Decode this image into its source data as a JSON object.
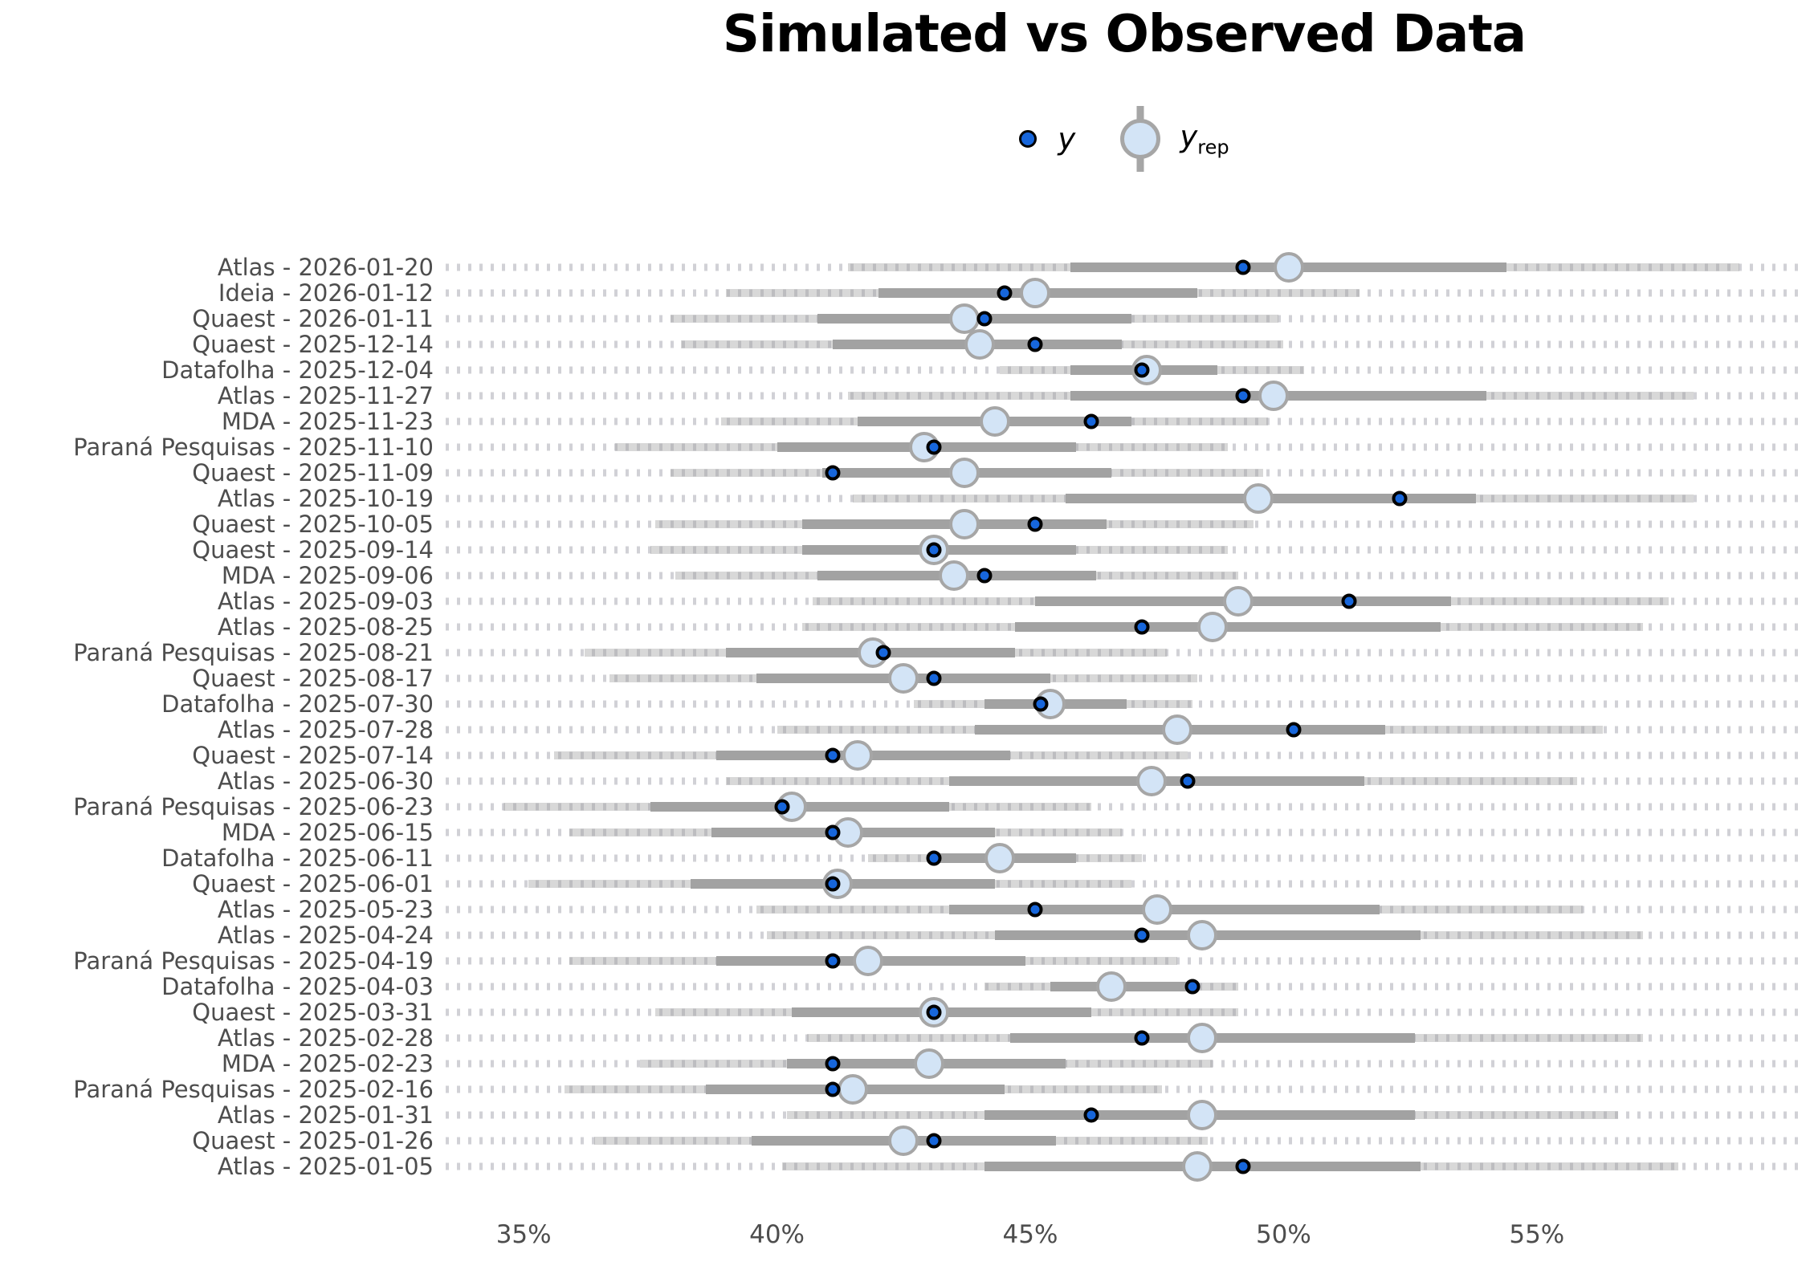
{
  "title": "Simulated vs Observed Data",
  "legend": {
    "y_label": "y",
    "yrep_base": "y",
    "yrep_sub": "rep"
  },
  "colors": {
    "observed_fill": "#1766db",
    "observed_stroke": "#000000",
    "rep_fill": "#d3e4f6",
    "rep_stroke": "#a6a6a6",
    "inner_bar": "#a2a2a2",
    "outer_band": "rgba(163,163,163,0.42)",
    "grid_dot": "#d1d1d6",
    "axis_text": "#4d4d4d"
  },
  "chart_data": {
    "type": "scatter",
    "subtype": "ppc-intervals (posterior predictive check: point + interval per observation)",
    "title": "Simulated vs Observed Data",
    "xlabel": "",
    "ylabel": "",
    "x_ticks_labels": [
      "35%",
      "40%",
      "45%",
      "50%",
      "55%"
    ],
    "x_tick_values": [
      35,
      40,
      45,
      50,
      55
    ],
    "x_domain": [
      33.46,
      60.25
    ],
    "legend_entries": [
      "y",
      "y_rep"
    ],
    "legend_position": "top-center",
    "grid": "dotted horizontal guide per row",
    "rows": [
      {
        "label": "Atlas - 2026-01-20",
        "y": 49.2,
        "yrep_median": 50.1,
        "inner": [
          45.8,
          54.4
        ],
        "outer": [
          41.4,
          59.0
        ]
      },
      {
        "label": "Ideia - 2026-01-12",
        "y": 44.5,
        "yrep_median": 45.1,
        "inner": [
          42.0,
          48.3
        ],
        "outer": [
          39.0,
          51.5
        ]
      },
      {
        "label": "Quaest - 2026-01-11",
        "y": 44.1,
        "yrep_median": 43.7,
        "inner": [
          40.8,
          47.0
        ],
        "outer": [
          37.9,
          49.9
        ]
      },
      {
        "label": "Quaest - 2025-12-14",
        "y": 45.1,
        "yrep_median": 44.0,
        "inner": [
          41.1,
          46.8
        ],
        "outer": [
          38.1,
          50.0
        ]
      },
      {
        "label": "Datafolha - 2025-12-04",
        "y": 47.2,
        "yrep_median": 47.3,
        "inner": [
          45.8,
          48.7
        ],
        "outer": [
          44.4,
          50.4
        ]
      },
      {
        "label": "Atlas - 2025-11-27",
        "y": 49.2,
        "yrep_median": 49.8,
        "inner": [
          45.8,
          54.0
        ],
        "outer": [
          41.4,
          58.1
        ]
      },
      {
        "label": "MDA - 2025-11-23",
        "y": 46.2,
        "yrep_median": 44.3,
        "inner": [
          41.6,
          47.0
        ],
        "outer": [
          38.9,
          49.7
        ]
      },
      {
        "label": "Paraná Pesquisas - 2025-11-10",
        "y": 43.1,
        "yrep_median": 42.9,
        "inner": [
          40.0,
          45.9
        ],
        "outer": [
          36.8,
          48.9
        ]
      },
      {
        "label": "Quaest - 2025-11-09",
        "y": 41.1,
        "yrep_median": 43.7,
        "inner": [
          40.9,
          46.6
        ],
        "outer": [
          37.9,
          49.6
        ]
      },
      {
        "label": "Atlas - 2025-10-19",
        "y": 52.3,
        "yrep_median": 49.5,
        "inner": [
          45.7,
          53.8
        ],
        "outer": [
          41.5,
          58.1
        ]
      },
      {
        "label": "Quaest - 2025-10-05",
        "y": 45.1,
        "yrep_median": 43.7,
        "inner": [
          40.5,
          46.5
        ],
        "outer": [
          37.6,
          49.4
        ]
      },
      {
        "label": "Quaest - 2025-09-14",
        "y": 43.1,
        "yrep_median": 43.1,
        "inner": [
          40.5,
          45.9
        ],
        "outer": [
          37.5,
          48.9
        ]
      },
      {
        "label": "MDA - 2025-09-06",
        "y": 44.1,
        "yrep_median": 43.5,
        "inner": [
          40.8,
          46.3
        ],
        "outer": [
          38.0,
          49.1
        ]
      },
      {
        "label": "Atlas - 2025-09-03",
        "y": 51.3,
        "yrep_median": 49.1,
        "inner": [
          45.1,
          53.3
        ],
        "outer": [
          40.7,
          57.6
        ]
      },
      {
        "label": "Atlas - 2025-08-25",
        "y": 47.2,
        "yrep_median": 48.6,
        "inner": [
          44.7,
          53.1
        ],
        "outer": [
          40.5,
          57.1
        ]
      },
      {
        "label": "Paraná Pesquisas - 2025-08-21",
        "y": 42.1,
        "yrep_median": 41.9,
        "inner": [
          39.0,
          44.7
        ],
        "outer": [
          36.2,
          47.7
        ]
      },
      {
        "label": "Quaest - 2025-08-17",
        "y": 43.1,
        "yrep_median": 42.5,
        "inner": [
          39.6,
          45.4
        ],
        "outer": [
          36.7,
          48.3
        ]
      },
      {
        "label": "Datafolha - 2025-07-30",
        "y": 45.2,
        "yrep_median": 45.4,
        "inner": [
          44.1,
          46.9
        ],
        "outer": [
          42.7,
          48.2
        ]
      },
      {
        "label": "Atlas - 2025-07-28",
        "y": 50.2,
        "yrep_median": 47.9,
        "inner": [
          43.9,
          52.0
        ],
        "outer": [
          40.0,
          56.3
        ]
      },
      {
        "label": "Quaest - 2025-07-14",
        "y": 41.1,
        "yrep_median": 41.6,
        "inner": [
          38.8,
          44.6
        ],
        "outer": [
          35.6,
          48.1
        ]
      },
      {
        "label": "Atlas - 2025-06-30",
        "y": 48.1,
        "yrep_median": 47.4,
        "inner": [
          43.4,
          51.6
        ],
        "outer": [
          39.0,
          55.8
        ]
      },
      {
        "label": "Paraná Pesquisas - 2025-06-23",
        "y": 40.1,
        "yrep_median": 40.3,
        "inner": [
          37.5,
          43.4
        ],
        "outer": [
          34.6,
          46.2
        ]
      },
      {
        "label": "MDA - 2025-06-15",
        "y": 41.1,
        "yrep_median": 41.4,
        "inner": [
          38.7,
          44.3
        ],
        "outer": [
          35.9,
          46.8
        ]
      },
      {
        "label": "Datafolha - 2025-06-11",
        "y": 43.1,
        "yrep_median": 44.4,
        "inner": [
          43.1,
          45.9
        ],
        "outer": [
          41.8,
          47.2
        ]
      },
      {
        "label": "Quaest - 2025-06-01",
        "y": 41.1,
        "yrep_median": 41.2,
        "inner": [
          38.3,
          44.3
        ],
        "outer": [
          35.1,
          47.0
        ]
      },
      {
        "label": "Atlas - 2025-05-23",
        "y": 45.1,
        "yrep_median": 47.5,
        "inner": [
          43.4,
          51.9
        ],
        "outer": [
          39.6,
          55.9
        ]
      },
      {
        "label": "Atlas - 2025-04-24",
        "y": 47.2,
        "yrep_median": 48.4,
        "inner": [
          44.3,
          52.7
        ],
        "outer": [
          39.8,
          57.1
        ]
      },
      {
        "label": "Paraná Pesquisas - 2025-04-19",
        "y": 41.1,
        "yrep_median": 41.8,
        "inner": [
          38.8,
          44.9
        ],
        "outer": [
          35.9,
          47.9
        ]
      },
      {
        "label": "Datafolha - 2025-04-03",
        "y": 48.2,
        "yrep_median": 46.6,
        "inner": [
          45.4,
          48.1
        ],
        "outer": [
          44.1,
          49.1
        ]
      },
      {
        "label": "Quaest - 2025-03-31",
        "y": 43.1,
        "yrep_median": 43.1,
        "inner": [
          40.3,
          46.2
        ],
        "outer": [
          37.6,
          49.1
        ]
      },
      {
        "label": "Atlas - 2025-02-28",
        "y": 47.2,
        "yrep_median": 48.4,
        "inner": [
          44.6,
          52.6
        ],
        "outer": [
          40.6,
          57.1
        ]
      },
      {
        "label": "MDA - 2025-02-23",
        "y": 41.1,
        "yrep_median": 43.0,
        "inner": [
          40.2,
          45.7
        ],
        "outer": [
          37.3,
          48.6
        ]
      },
      {
        "label": "Paraná Pesquisas - 2025-02-16",
        "y": 41.1,
        "yrep_median": 41.5,
        "inner": [
          38.6,
          44.5
        ],
        "outer": [
          35.8,
          47.6
        ]
      },
      {
        "label": "Atlas - 2025-01-31",
        "y": 46.2,
        "yrep_median": 48.4,
        "inner": [
          44.1,
          52.6
        ],
        "outer": [
          40.2,
          56.6
        ]
      },
      {
        "label": "Quaest - 2025-01-26",
        "y": 43.1,
        "yrep_median": 42.5,
        "inner": [
          39.5,
          45.5
        ],
        "outer": [
          36.4,
          48.5
        ]
      },
      {
        "label": "Atlas - 2025-01-05",
        "y": 49.2,
        "yrep_median": 48.3,
        "inner": [
          44.1,
          52.7
        ],
        "outer": [
          40.1,
          57.8
        ]
      }
    ]
  }
}
